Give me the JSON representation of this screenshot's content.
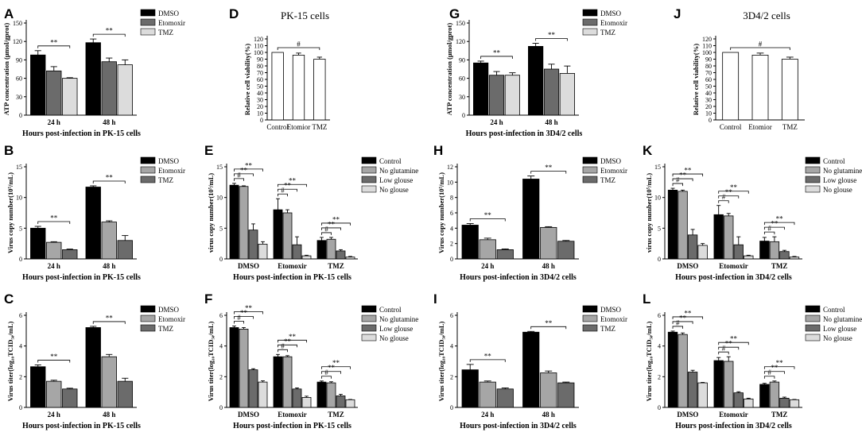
{
  "colors": {
    "c0": "#000000",
    "c1": "#a6a6a6",
    "c2": "#6b6b6b",
    "c3": "#dcdcdc",
    "white": "#ffffff"
  },
  "chart_data": [
    {
      "id": "A",
      "letter": "A",
      "type": "bar",
      "ylabel": "ATP concentration (μmol/gprot)",
      "xlabel": "Hours post-infection in PK-15 cells",
      "categories": [
        "24 h",
        "48 h"
      ],
      "ylim": [
        0,
        150
      ],
      "yticks": [
        0,
        30,
        60,
        90,
        120,
        150
      ],
      "series": [
        {
          "name": "DMSO",
          "color": "c0",
          "values": [
            98,
            118
          ],
          "errors": [
            7,
            6
          ]
        },
        {
          "name": "Etomoxir",
          "color": "c2",
          "values": [
            72,
            87
          ],
          "errors": [
            7,
            6
          ]
        },
        {
          "name": "TMZ",
          "color": "c3",
          "values": [
            60,
            82
          ],
          "errors": [
            1,
            8
          ]
        }
      ],
      "sig": [
        {
          "cat": 0,
          "from": 0,
          "to": 2,
          "label": "**",
          "level": 0
        },
        {
          "cat": 1,
          "from": 0,
          "to": 2,
          "label": "**",
          "level": 0
        }
      ]
    },
    {
      "id": "D",
      "letter": "D",
      "type": "bar",
      "title": "PK-15 cells",
      "ylabel": "Relative cell viability(%)",
      "xlabel": "",
      "categories": [
        "Control",
        "Etomior",
        "TMZ"
      ],
      "ylim": [
        0,
        120
      ],
      "yticks": [
        0,
        10,
        20,
        30,
        40,
        50,
        60,
        70,
        80,
        90,
        100,
        110,
        120
      ],
      "series": [
        {
          "name": "",
          "color": "white",
          "values": [
            100,
            96,
            90
          ],
          "errors": [
            0,
            3,
            3
          ]
        }
      ],
      "sig": [
        {
          "from": 0,
          "to": 2,
          "label": "#",
          "level": 0
        }
      ]
    },
    {
      "id": "G",
      "letter": "G",
      "type": "bar",
      "ylabel": "ATP concentration (μmol/gprot)",
      "xlabel": "Hours post-infection in 3D4/2 cells",
      "categories": [
        "24 h",
        "48 h"
      ],
      "ylim": [
        0,
        150
      ],
      "yticks": [
        0,
        30,
        60,
        90,
        120,
        150
      ],
      "series": [
        {
          "name": "DMSO",
          "color": "c0",
          "values": [
            85,
            112
          ],
          "errors": [
            3,
            5
          ]
        },
        {
          "name": "Etomoxir",
          "color": "c2",
          "values": [
            65,
            75
          ],
          "errors": [
            6,
            8
          ]
        },
        {
          "name": "TMZ",
          "color": "c3",
          "values": [
            65,
            68
          ],
          "errors": [
            4,
            12
          ]
        }
      ],
      "sig": [
        {
          "cat": 0,
          "from": 0,
          "to": 2,
          "label": "**",
          "level": 0
        },
        {
          "cat": 1,
          "from": 0,
          "to": 2,
          "label": "**",
          "level": 0
        }
      ]
    },
    {
      "id": "J",
      "letter": "J",
      "type": "bar",
      "title": "3D4/2 cells",
      "ylabel": "Relative cell viability(%)",
      "xlabel": "",
      "categories": [
        "Control",
        "Etomior",
        "TMZ"
      ],
      "ylim": [
        0,
        120
      ],
      "yticks": [
        0,
        10,
        20,
        30,
        40,
        50,
        60,
        70,
        80,
        90,
        100,
        110,
        120
      ],
      "series": [
        {
          "name": "",
          "color": "white",
          "values": [
            100,
            96,
            90
          ],
          "errors": [
            0,
            3,
            3
          ]
        }
      ],
      "sig": [
        {
          "from": 0,
          "to": 2,
          "label": "#",
          "level": 0
        }
      ]
    },
    {
      "id": "B",
      "letter": "B",
      "type": "bar",
      "ylabel": "Virus copy number(10⁵/mL)",
      "xlabel": "Hours post-infection in PK-15 cells",
      "categories": [
        "24 h",
        "48 h"
      ],
      "ylim": [
        0,
        15
      ],
      "yticks": [
        0,
        5,
        10,
        15
      ],
      "series": [
        {
          "name": "DMSO",
          "color": "c0",
          "values": [
            5.0,
            11.7
          ],
          "errors": [
            0.3,
            0.2
          ]
        },
        {
          "name": "Etomoxir",
          "color": "c1",
          "values": [
            2.7,
            6.0
          ],
          "errors": [
            0.1,
            0.2
          ]
        },
        {
          "name": "TMZ",
          "color": "c2",
          "values": [
            1.5,
            3.0
          ],
          "errors": [
            0.1,
            0.8
          ]
        }
      ],
      "sig": [
        {
          "cat": 0,
          "from": 0,
          "to": 2,
          "label": "**",
          "level": 0
        },
        {
          "cat": 1,
          "from": 0,
          "to": 2,
          "label": "**",
          "level": 0
        }
      ]
    },
    {
      "id": "E",
      "letter": "E",
      "type": "bar",
      "ylabel": "virus copy number(10⁵/mL)",
      "xlabel": "Hours post-infection in PK-15 cells",
      "categories": [
        "DMSO",
        "Etomoxir",
        "TMZ"
      ],
      "ylim": [
        0,
        15
      ],
      "yticks": [
        0,
        5,
        10,
        15
      ],
      "series": [
        {
          "name": "Control",
          "color": "c0",
          "values": [
            12.0,
            8.0,
            3.0
          ],
          "errors": [
            0.3,
            1.8,
            0.5
          ]
        },
        {
          "name": "No glutamine",
          "color": "c1",
          "values": [
            11.8,
            7.5,
            3.2
          ],
          "errors": [
            0.1,
            0.5,
            0.3
          ]
        },
        {
          "name": "Low glouse",
          "color": "c2",
          "values": [
            4.7,
            2.3,
            1.3
          ],
          "errors": [
            1.0,
            1.3,
            0.2
          ]
        },
        {
          "name": "No glouse",
          "color": "c3",
          "values": [
            2.4,
            0.5,
            0.3
          ],
          "errors": [
            0.4,
            0.1,
            0.1
          ]
        }
      ],
      "sig": [
        {
          "cat": 0,
          "from": 0,
          "to": 1,
          "label": "#",
          "level": 0
        },
        {
          "cat": 0,
          "from": 0,
          "to": 2,
          "label": "**",
          "level": 1
        },
        {
          "cat": 0,
          "from": 0,
          "to": 3,
          "label": "**",
          "level": 2
        },
        {
          "cat": 1,
          "from": 0,
          "to": 1,
          "label": "#",
          "level": 0
        },
        {
          "cat": 1,
          "from": 0,
          "to": 2,
          "label": "**",
          "level": 1
        },
        {
          "cat": 1,
          "from": 0,
          "to": 3,
          "label": "**",
          "level": 2
        },
        {
          "cat": 2,
          "from": 0,
          "to": 1,
          "label": "#",
          "level": 0
        },
        {
          "cat": 2,
          "from": 0,
          "to": 2,
          "label": "**",
          "level": 1
        },
        {
          "cat": 2,
          "from": 0,
          "to": 3,
          "label": "**",
          "level": 2
        }
      ]
    },
    {
      "id": "H",
      "letter": "H",
      "type": "bar",
      "ylabel": "Virus copy number(10⁵/mL)",
      "xlabel": "Hours post-infection in 3D4/2 cells",
      "categories": [
        "24 h",
        "48 h"
      ],
      "ylim": [
        0,
        12
      ],
      "yticks": [
        0,
        2,
        4,
        6,
        8,
        10,
        12
      ],
      "series": [
        {
          "name": "DMSO",
          "color": "c0",
          "values": [
            4.4,
            10.4
          ],
          "errors": [
            0.2,
            0.4
          ]
        },
        {
          "name": "Etomoxir",
          "color": "c1",
          "values": [
            2.5,
            4.1
          ],
          "errors": [
            0.2,
            0.1
          ]
        },
        {
          "name": "TMZ",
          "color": "c2",
          "values": [
            1.2,
            2.3
          ],
          "errors": [
            0.1,
            0.1
          ]
        }
      ],
      "sig": [
        {
          "cat": 0,
          "from": 0,
          "to": 2,
          "label": "**",
          "level": 0
        },
        {
          "cat": 1,
          "from": 0,
          "to": 2,
          "label": "**",
          "level": 0
        }
      ]
    },
    {
      "id": "K",
      "letter": "K",
      "type": "bar",
      "ylabel": "virus copy number(10⁵/mL)",
      "xlabel": "Hours post-infection in 3D4/2 cells",
      "categories": [
        "DMSO",
        "Etomoxir",
        "TMZ"
      ],
      "ylim": [
        0,
        15
      ],
      "yticks": [
        0,
        5,
        10,
        15
      ],
      "series": [
        {
          "name": "Control",
          "color": "c0",
          "values": [
            11.2,
            7.2,
            2.9
          ],
          "errors": [
            0.3,
            1.5,
            0.6
          ]
        },
        {
          "name": "No glutamine",
          "color": "c1",
          "values": [
            11.0,
            7.0,
            2.8
          ],
          "errors": [
            0.2,
            0.4,
            0.8
          ]
        },
        {
          "name": "Low glouse",
          "color": "c2",
          "values": [
            3.9,
            2.3,
            1.2
          ],
          "errors": [
            0.9,
            1.3,
            0.2
          ]
        },
        {
          "name": "No glouse",
          "color": "c3",
          "values": [
            2.2,
            0.5,
            0.3
          ],
          "errors": [
            0.3,
            0.1,
            0.1
          ]
        }
      ],
      "sig": [
        {
          "cat": 0,
          "from": 0,
          "to": 1,
          "label": "#",
          "level": 0
        },
        {
          "cat": 0,
          "from": 0,
          "to": 2,
          "label": "**",
          "level": 1
        },
        {
          "cat": 0,
          "from": 0,
          "to": 3,
          "label": "**",
          "level": 2
        },
        {
          "cat": 1,
          "from": 0,
          "to": 1,
          "label": "#",
          "level": 0
        },
        {
          "cat": 1,
          "from": 0,
          "to": 2,
          "label": "**",
          "level": 1
        },
        {
          "cat": 1,
          "from": 0,
          "to": 3,
          "label": "**",
          "level": 2
        },
        {
          "cat": 2,
          "from": 0,
          "to": 1,
          "label": "#",
          "level": 0
        },
        {
          "cat": 2,
          "from": 0,
          "to": 2,
          "label": "**",
          "level": 1
        },
        {
          "cat": 2,
          "from": 0,
          "to": 3,
          "label": "**",
          "level": 2
        }
      ]
    },
    {
      "id": "C",
      "letter": "C",
      "type": "bar",
      "ylabel": "Virus titer(log₁₀TCID₅₀/mL)",
      "xlabel": "Hours post-infection in PK-15 cells",
      "categories": [
        "24 h",
        "48 h"
      ],
      "ylim": [
        0,
        6
      ],
      "yticks": [
        0,
        2,
        4,
        6
      ],
      "series": [
        {
          "name": "DMSO",
          "color": "c0",
          "values": [
            2.65,
            5.2
          ],
          "errors": [
            0.12,
            0.08
          ]
        },
        {
          "name": "Etomoxir",
          "color": "c1",
          "values": [
            1.7,
            3.3
          ],
          "errors": [
            0.07,
            0.15
          ]
        },
        {
          "name": "TMZ",
          "color": "c2",
          "values": [
            1.2,
            1.7
          ],
          "errors": [
            0.05,
            0.2
          ]
        }
      ],
      "sig": [
        {
          "cat": 0,
          "from": 0,
          "to": 2,
          "label": "**",
          "level": 0
        },
        {
          "cat": 1,
          "from": 0,
          "to": 2,
          "label": "**",
          "level": 0
        }
      ]
    },
    {
      "id": "F",
      "letter": "F",
      "type": "bar",
      "ylabel": "Virus titer(log₁₀TCID₅₀/mL)",
      "xlabel": "Hours post-infection in PK-15 cells",
      "categories": [
        "DMSO",
        "Etomoxir",
        "TMZ"
      ],
      "ylim": [
        0,
        6
      ],
      "yticks": [
        0,
        2,
        4,
        6
      ],
      "series": [
        {
          "name": "Control",
          "color": "c0",
          "values": [
            5.2,
            3.3,
            1.65
          ],
          "errors": [
            0.1,
            0.15,
            0.07
          ]
        },
        {
          "name": "No glutamine",
          "color": "c1",
          "values": [
            5.1,
            3.3,
            1.6
          ],
          "errors": [
            0.1,
            0.07,
            0.07
          ]
        },
        {
          "name": "Low glouse",
          "color": "c2",
          "values": [
            2.45,
            1.2,
            0.75
          ],
          "errors": [
            0.07,
            0.07,
            0.1
          ]
        },
        {
          "name": "No glouse",
          "color": "c3",
          "values": [
            1.65,
            0.65,
            0.5
          ],
          "errors": [
            0.08,
            0.08,
            0.02
          ]
        }
      ],
      "sig": [
        {
          "cat": 0,
          "from": 0,
          "to": 1,
          "label": "#",
          "level": 0
        },
        {
          "cat": 0,
          "from": 0,
          "to": 2,
          "label": "**",
          "level": 1
        },
        {
          "cat": 0,
          "from": 0,
          "to": 3,
          "label": "**",
          "level": 2
        },
        {
          "cat": 1,
          "from": 0,
          "to": 1,
          "label": "#",
          "level": 0
        },
        {
          "cat": 1,
          "from": 0,
          "to": 2,
          "label": "**",
          "level": 1
        },
        {
          "cat": 1,
          "from": 0,
          "to": 3,
          "label": "**",
          "level": 2
        },
        {
          "cat": 2,
          "from": 0,
          "to": 1,
          "label": "#",
          "level": 0
        },
        {
          "cat": 2,
          "from": 0,
          "to": 2,
          "label": "**",
          "level": 1
        },
        {
          "cat": 2,
          "from": 0,
          "to": 3,
          "label": "**",
          "level": 2
        }
      ]
    },
    {
      "id": "I",
      "letter": "I",
      "type": "bar",
      "ylabel": "Virus titer(log₁₀TCID₅₀/mL)",
      "xlabel": "Hours post-infection in 3D4/2 cells",
      "categories": [
        "24 h",
        "48 h"
      ],
      "ylim": [
        0,
        6
      ],
      "yticks": [
        0,
        2,
        4,
        6
      ],
      "series": [
        {
          "name": "DMSO",
          "color": "c0",
          "values": [
            2.45,
            4.9
          ],
          "errors": [
            0.35,
            0.05
          ]
        },
        {
          "name": "Etomoxir",
          "color": "c1",
          "values": [
            1.65,
            2.25
          ],
          "errors": [
            0.07,
            0.12
          ]
        },
        {
          "name": "TMZ",
          "color": "c2",
          "values": [
            1.2,
            1.6
          ],
          "errors": [
            0.07,
            0.05
          ]
        }
      ],
      "sig": [
        {
          "cat": 0,
          "from": 0,
          "to": 2,
          "label": "**",
          "level": 0
        },
        {
          "cat": 1,
          "from": 0,
          "to": 2,
          "label": "**",
          "level": 0
        }
      ]
    },
    {
      "id": "L",
      "letter": "L",
      "type": "bar",
      "ylabel": "Virus titer(log₁₀TCID₅₀/mL)",
      "xlabel": "Hours post-infection in 3D4/2 cells",
      "categories": [
        "DMSO",
        "Etomoxir",
        "TMZ"
      ],
      "ylim": [
        0,
        6
      ],
      "yticks": [
        0,
        2,
        4,
        6
      ],
      "series": [
        {
          "name": "Control",
          "color": "c0",
          "values": [
            4.9,
            3.05,
            1.5
          ],
          "errors": [
            0.07,
            0.2,
            0.07
          ]
        },
        {
          "name": "No glutamine",
          "color": "c1",
          "values": [
            4.75,
            3.0,
            1.65
          ],
          "errors": [
            0.1,
            0.3,
            0.07
          ]
        },
        {
          "name": "Low glouse",
          "color": "c2",
          "values": [
            2.3,
            0.95,
            0.6
          ],
          "errors": [
            0.12,
            0.07,
            0.07
          ]
        },
        {
          "name": "No glouse",
          "color": "c3",
          "values": [
            1.6,
            0.55,
            0.5
          ],
          "errors": [
            0.03,
            0.05,
            0.02
          ]
        }
      ],
      "sig": [
        {
          "cat": 0,
          "from": 0,
          "to": 1,
          "label": "#",
          "level": 0
        },
        {
          "cat": 0,
          "from": 0,
          "to": 2,
          "label": "**",
          "level": 1
        },
        {
          "cat": 0,
          "from": 0,
          "to": 3,
          "label": "**",
          "level": 2
        },
        {
          "cat": 1,
          "from": 0,
          "to": 1,
          "label": "#",
          "level": 0
        },
        {
          "cat": 1,
          "from": 0,
          "to": 2,
          "label": "**",
          "level": 1
        },
        {
          "cat": 1,
          "from": 0,
          "to": 3,
          "label": "**",
          "level": 2
        },
        {
          "cat": 2,
          "from": 0,
          "to": 1,
          "label": "#",
          "level": 0
        },
        {
          "cat": 2,
          "from": 0,
          "to": 2,
          "label": "**",
          "level": 1
        },
        {
          "cat": 2,
          "from": 0,
          "to": 3,
          "label": "**",
          "level": 2
        }
      ]
    }
  ]
}
